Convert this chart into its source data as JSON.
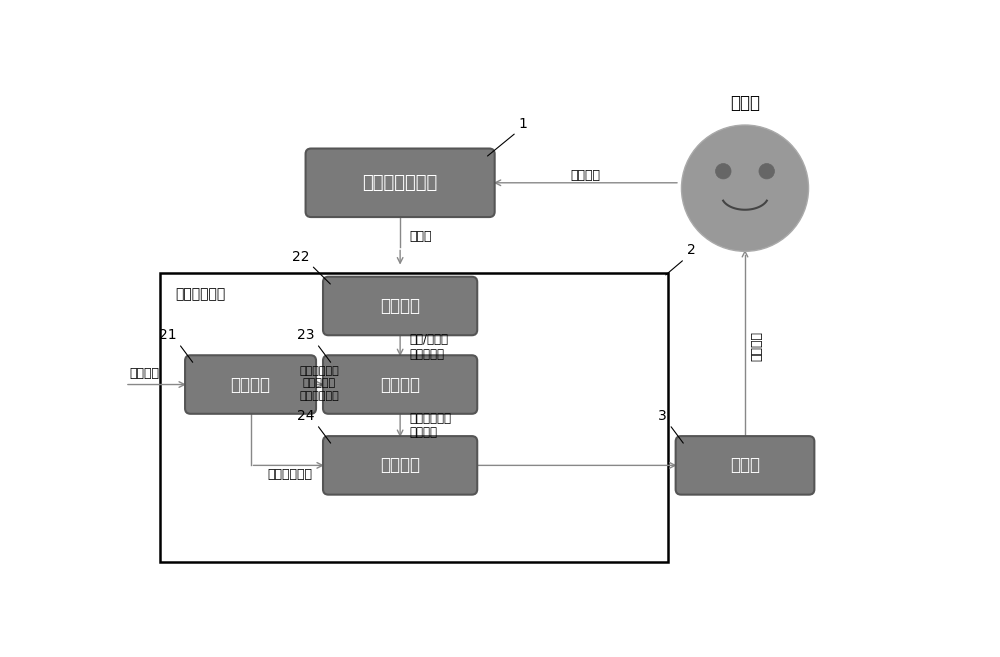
{
  "fig_width": 10.0,
  "fig_height": 6.57,
  "bg_color": "#ffffff",
  "box_fill_color": "#7a7a7a",
  "box_edge_color": "#555555",
  "face_fill_color": "#999999",
  "text_color": "#000000",
  "white_text": "#ffffff",
  "arrow_color": "#888888",
  "label_1": "1",
  "label_2": "2",
  "label_3": "3",
  "label_21": "21",
  "label_22": "22",
  "label_23": "23",
  "label_24": "24",
  "title_device": "光学脑成像设备",
  "title_cpu": "中央处理单元",
  "title_collect": "采集模块",
  "title_task": "任务模块",
  "title_decode": "解码模块",
  "title_feedback": "反馈模块",
  "title_display": "显示器",
  "title_trainee": "受训者",
  "arrow_bitstream": "比特流",
  "arrow_neural": "神经活动",
  "arrow_task_info": "任务信息",
  "arrow_location_1": "特定功能区域",
  "arrow_location_2": "定位信息、",
  "arrow_location_3": "实验进行状态",
  "arrow_oxy_1": "氧合/脱氧血",
  "arrow_oxy_2": "红蛋白浓度",
  "arrow_specific_1": "特定功能区域",
  "arrow_specific_2": "神经活动",
  "arrow_exp_state": "实验进行状态",
  "arrow_visual": "视觉反馈"
}
